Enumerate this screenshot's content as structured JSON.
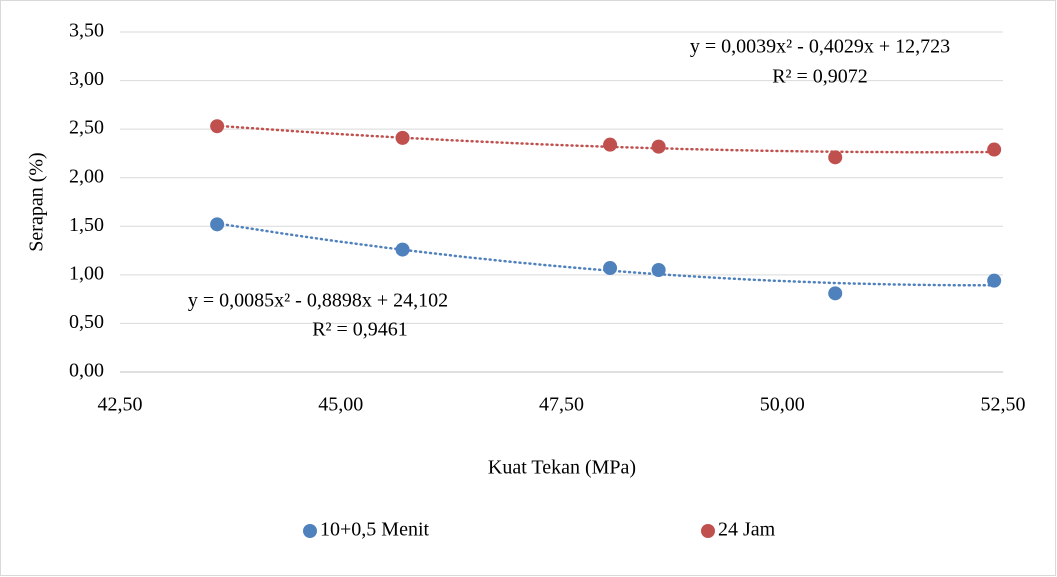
{
  "chart_data": {
    "type": "scatter",
    "x_label": "Kuat Tekan (MPa)",
    "y_label": "Serapan (%)",
    "xlim": [
      42.5,
      52.5
    ],
    "xticks": [
      {
        "value": 42.5,
        "label": "42,50"
      },
      {
        "value": 45,
        "label": "45,00"
      },
      {
        "value": 47.5,
        "label": "47,50"
      },
      {
        "value": 50,
        "label": "50,00"
      },
      {
        "value": 52.5,
        "label": "52,50"
      }
    ],
    "ylim": [
      0,
      3.5
    ],
    "yticks": [
      {
        "value": 0,
        "label": "0,00"
      },
      {
        "value": 0.5,
        "label": "0,50"
      },
      {
        "value": 1,
        "label": "1,00"
      },
      {
        "value": 1.5,
        "label": "1,50"
      },
      {
        "value": 2,
        "label": "2,00"
      },
      {
        "value": 2.5,
        "label": "2,50"
      },
      {
        "value": 3,
        "label": "3,00"
      },
      {
        "value": 3.5,
        "label": "3,50"
      }
    ],
    "grid": true,
    "legend": "bottom",
    "series": [
      {
        "name": "10+0,5 Menit",
        "color": "#4f81bd",
        "x": [
          43.6,
          45.7,
          48.05,
          48.6,
          50.6,
          52.4
        ],
        "values": [
          1.52,
          1.26,
          1.07,
          1.05,
          0.81,
          0.94
        ],
        "trendline_equation": "y = 0,0085x² - 0,8898x + 24,102",
        "r_squared": "R² = 0,9461"
      },
      {
        "name": "24 Jam",
        "color": "#c0504d",
        "x": [
          43.6,
          45.7,
          48.05,
          48.6,
          50.6,
          52.4
        ],
        "values": [
          2.53,
          2.41,
          2.34,
          2.32,
          2.21,
          2.29
        ],
        "trendline_equation": "y = 0,0039x² - 0,4029x + 12,723",
        "r_squared": "R² = 0,9072"
      }
    ]
  }
}
